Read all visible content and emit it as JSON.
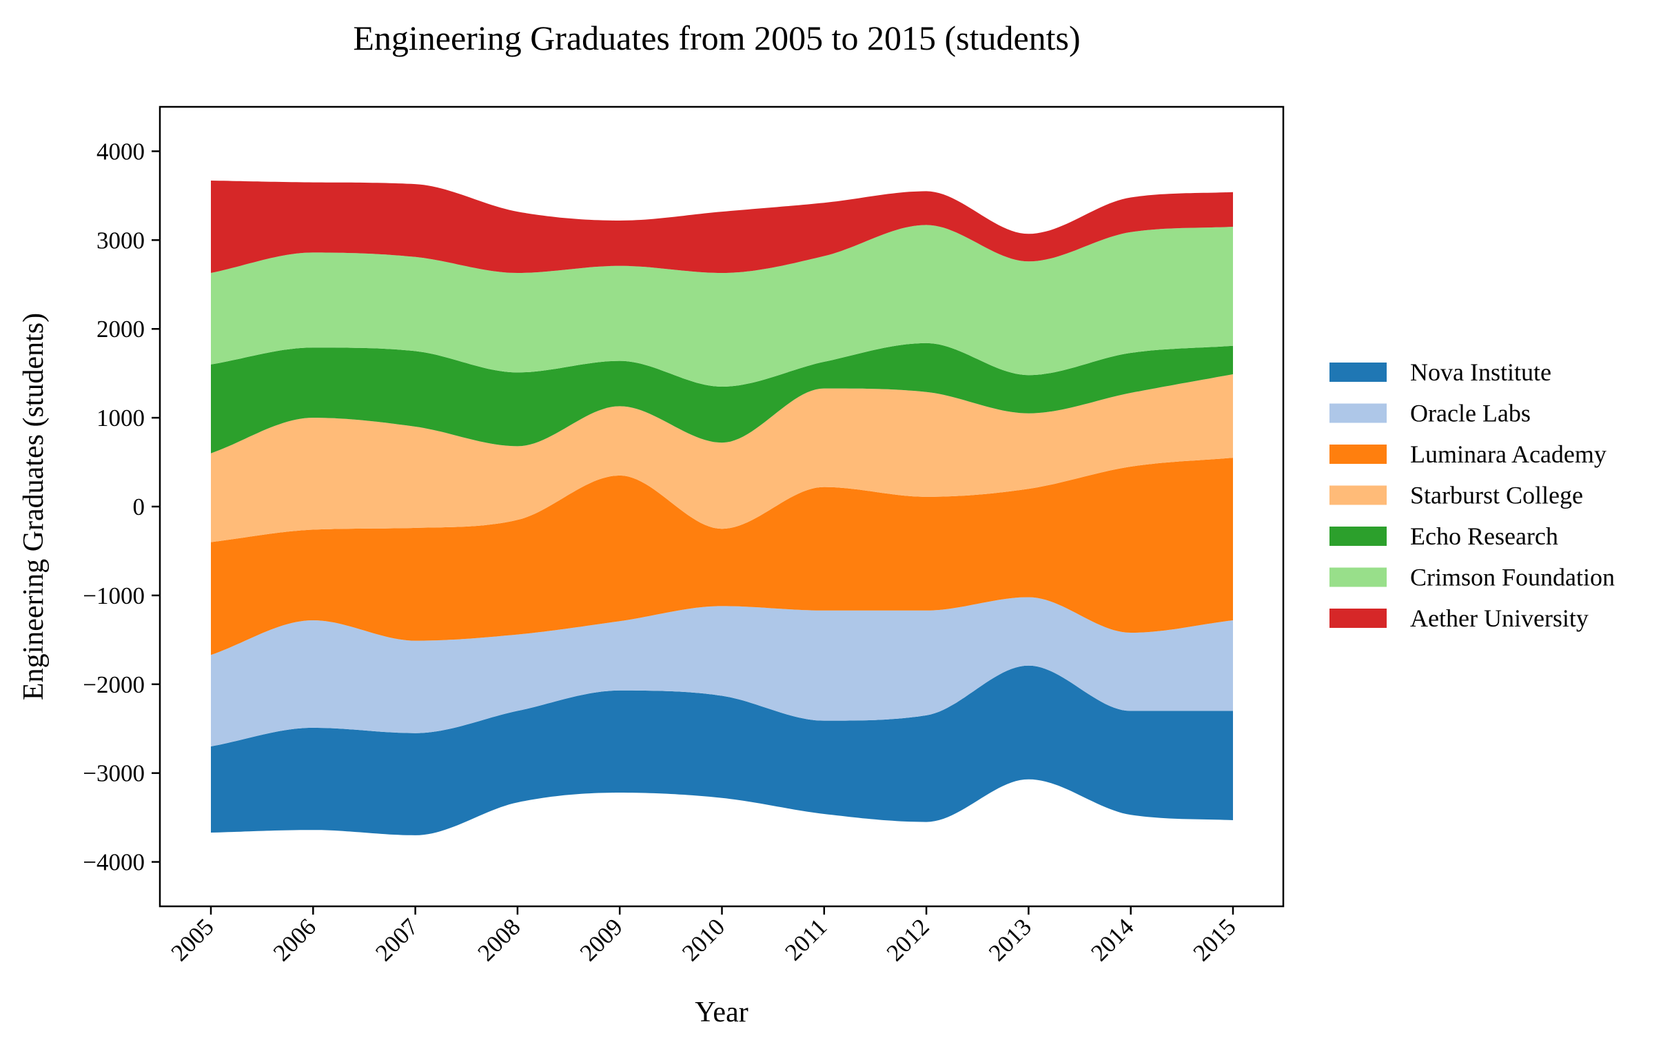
{
  "chart_data": {
    "type": "area",
    "subtype": "streamgraph",
    "title": "Engineering Graduates from 2005 to 2015 (students)",
    "xlabel": "Year",
    "ylabel": "Engineering Graduates (students)",
    "x": [
      2005,
      2006,
      2007,
      2008,
      2009,
      2010,
      2011,
      2012,
      2013,
      2014,
      2015
    ],
    "x_tick_labels": [
      "2005",
      "2006",
      "2007",
      "2008",
      "2009",
      "2010",
      "2011",
      "2012",
      "2013",
      "2014",
      "2015"
    ],
    "ylim": [
      -4500,
      4500
    ],
    "y_ticks": [
      -4000,
      -3000,
      -2000,
      -1000,
      0,
      1000,
      2000,
      3000,
      4000
    ],
    "y_tick_labels": [
      "−4000",
      "−3000",
      "−2000",
      "−1000",
      "0",
      "1000",
      "2000",
      "3000",
      "4000"
    ],
    "baseline": [
      -3670,
      -3640,
      -3700,
      -3330,
      -3220,
      -3280,
      -3460,
      -3550,
      -3070,
      -3470,
      -3530
    ],
    "grid": false,
    "legend_position": "right",
    "series": [
      {
        "name": "Nova Institute",
        "color": "#1f77b4",
        "values": [
          970,
          1150,
          1150,
          1030,
          1150,
          1150,
          1050,
          1200,
          1280,
          1170,
          1230
        ]
      },
      {
        "name": "Oracle Labs",
        "color": "#aec7e8",
        "values": [
          1030,
          1210,
          1040,
          860,
          780,
          1010,
          1240,
          1180,
          770,
          880,
          1020
        ]
      },
      {
        "name": "Luminara Academy",
        "color": "#ff7f0e",
        "values": [
          1270,
          1020,
          1270,
          1290,
          1640,
          870,
          1390,
          1280,
          1220,
          1870,
          1830
        ]
      },
      {
        "name": "Starburst College",
        "color": "#ffbb78",
        "values": [
          1000,
          1260,
          1140,
          830,
          780,
          970,
          1110,
          1180,
          850,
          830,
          940
        ]
      },
      {
        "name": "Echo Research",
        "color": "#2ca02c",
        "values": [
          1000,
          790,
          850,
          830,
          510,
          630,
          300,
          550,
          430,
          450,
          320
        ]
      },
      {
        "name": "Crimson Foundation",
        "color": "#98df8a",
        "values": [
          1030,
          1070,
          1060,
          1120,
          1070,
          1280,
          1190,
          1330,
          1280,
          1360,
          1340
        ]
      },
      {
        "name": "Aether University",
        "color": "#d62728",
        "values": [
          1040,
          790,
          820,
          690,
          510,
          690,
          600,
          380,
          310,
          390,
          390
        ]
      }
    ]
  }
}
